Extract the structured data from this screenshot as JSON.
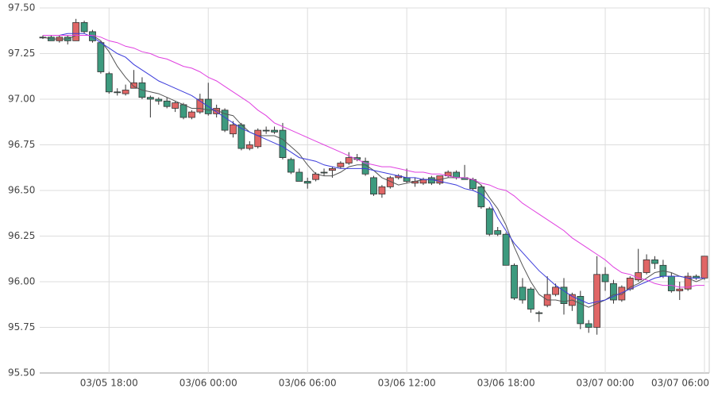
{
  "chart_data": {
    "type": "candlestick",
    "up_color": "#e06666",
    "down_color": "#3d9a7e",
    "grid": true,
    "ylim": [
      95.5,
      97.5
    ],
    "yticks": [
      {
        "value": 95.5,
        "label": "95.50"
      },
      95.75,
      {
        "value": 96,
        "label": "96.00"
      },
      96.25,
      {
        "value": 96.5,
        "label": "96.50"
      },
      96.75,
      {
        "value": 97,
        "label": "97.00"
      },
      97.25,
      {
        "value": 97.5,
        "label": "97.50"
      }
    ],
    "xlim": [
      0,
      80
    ],
    "xticks": [
      {
        "value": 8,
        "label": "03/05 18:00"
      },
      {
        "value": 20,
        "label": "03/06 00:00"
      },
      {
        "value": 32,
        "label": "03/06 06:00"
      },
      {
        "value": 44,
        "label": "03/06 12:00"
      },
      {
        "value": 56,
        "label": "03/06 18:00"
      },
      {
        "value": 68,
        "label": "03/07 00:00"
      },
      {
        "value": 80,
        "label": "03/07 06:00"
      }
    ],
    "open": [
      97.34,
      97.34,
      97.32,
      97.34,
      97.32,
      97.42,
      97.37,
      97.31,
      97.14,
      97.04,
      97.03,
      97.06,
      97.09,
      97.01,
      97.0,
      96.99,
      96.95,
      96.97,
      96.9,
      96.93,
      97.0,
      96.92,
      96.94,
      96.81,
      96.86,
      96.73,
      96.74,
      96.83,
      96.83,
      96.83,
      96.67,
      96.6,
      96.55,
      96.56,
      96.6,
      96.61,
      96.63,
      96.65,
      96.68,
      96.66,
      96.57,
      96.48,
      96.52,
      96.57,
      96.57,
      96.54,
      96.54,
      96.57,
      96.54,
      96.58,
      96.6,
      96.57,
      96.56,
      96.52,
      96.4,
      96.28,
      96.26,
      96.09,
      95.97,
      95.96,
      95.83,
      95.87,
      95.93,
      95.97,
      95.87,
      95.92,
      95.77,
      95.75,
      96.04,
      95.99,
      95.9,
      95.96,
      96.01,
      96.05,
      96.12,
      96.09,
      96.03,
      95.95,
      95.96,
      96.03,
      96.02
    ],
    "high": [
      97.35,
      97.35,
      97.35,
      97.35,
      97.44,
      97.43,
      97.38,
      97.32,
      97.15,
      97.06,
      97.08,
      97.16,
      97.12,
      97.02,
      97.01,
      97.01,
      96.99,
      96.98,
      96.94,
      97.03,
      97.09,
      96.97,
      96.95,
      96.88,
      96.87,
      96.77,
      96.84,
      96.85,
      96.85,
      96.87,
      96.68,
      96.62,
      96.57,
      96.6,
      96.62,
      96.63,
      96.66,
      96.71,
      96.7,
      96.68,
      96.58,
      96.53,
      96.58,
      96.59,
      96.62,
      96.57,
      96.57,
      96.58,
      96.58,
      96.61,
      96.61,
      96.64,
      96.57,
      96.53,
      96.41,
      96.3,
      96.27,
      96.1,
      96.02,
      95.97,
      95.84,
      96.03,
      95.99,
      96.02,
      95.94,
      95.95,
      95.79,
      96.14,
      96.08,
      96.01,
      95.98,
      96.03,
      96.18,
      96.15,
      96.14,
      96.12,
      96.05,
      96.0,
      96.05,
      96.04,
      96.14
    ],
    "low": [
      97.33,
      97.32,
      97.31,
      97.3,
      97.32,
      97.36,
      97.31,
      97.14,
      97.03,
      97.02,
      97.02,
      97.06,
      97.0,
      96.9,
      96.97,
      96.95,
      96.93,
      96.89,
      96.89,
      96.92,
      96.91,
      96.9,
      96.82,
      96.79,
      96.72,
      96.72,
      96.73,
      96.81,
      96.81,
      96.67,
      96.59,
      96.55,
      96.51,
      96.55,
      96.58,
      96.57,
      96.62,
      96.64,
      96.66,
      96.58,
      96.47,
      96.46,
      96.51,
      96.56,
      96.54,
      96.52,
      96.53,
      96.53,
      96.53,
      96.57,
      96.56,
      96.56,
      96.5,
      96.4,
      96.25,
      96.25,
      96.09,
      95.9,
      95.88,
      95.83,
      95.78,
      95.86,
      95.92,
      95.82,
      95.84,
      95.74,
      95.72,
      95.71,
      95.95,
      95.88,
      95.89,
      95.95,
      96.0,
      96.04,
      96.07,
      96.02,
      95.94,
      95.9,
      95.95,
      96.01,
      96.01
    ],
    "close": [
      97.34,
      97.32,
      97.34,
      97.32,
      97.42,
      97.37,
      97.32,
      97.15,
      97.04,
      97.04,
      97.05,
      97.09,
      97.01,
      97.0,
      96.99,
      96.96,
      96.98,
      96.9,
      96.93,
      97.0,
      96.92,
      96.95,
      96.83,
      96.86,
      96.73,
      96.75,
      96.83,
      96.83,
      96.82,
      96.68,
      96.6,
      96.55,
      96.54,
      96.59,
      96.6,
      96.62,
      96.65,
      96.68,
      96.67,
      96.59,
      96.48,
      96.52,
      96.57,
      96.58,
      96.55,
      96.55,
      96.56,
      96.54,
      96.58,
      96.6,
      96.57,
      96.56,
      96.51,
      96.41,
      96.26,
      96.26,
      96.09,
      95.91,
      95.9,
      95.85,
      95.83,
      95.93,
      95.97,
      95.88,
      95.93,
      95.77,
      95.75,
      96.04,
      96.0,
      95.9,
      95.97,
      96.02,
      96.05,
      96.12,
      96.1,
      96.03,
      95.95,
      95.96,
      96.03,
      96.02,
      96.14
    ],
    "series": [
      {
        "color": "#555555",
        "values": [
          97.34,
          97.33,
          97.33,
          97.33,
          97.35,
          97.35,
          97.35,
          97.32,
          97.26,
          97.18,
          97.12,
          97.07,
          97.05,
          97.04,
          97.03,
          97.01,
          96.99,
          96.97,
          96.95,
          96.95,
          96.94,
          96.94,
          96.92,
          96.91,
          96.86,
          96.82,
          96.8,
          96.8,
          96.8,
          96.78,
          96.74,
          96.7,
          96.64,
          96.59,
          96.58,
          96.58,
          96.6,
          96.63,
          96.64,
          96.64,
          96.61,
          96.57,
          96.55,
          96.53,
          96.54,
          96.55,
          96.56,
          96.56,
          96.56,
          96.57,
          96.57,
          96.57,
          96.56,
          96.53,
          96.46,
          96.4,
          96.31,
          96.19,
          96.09,
          96.0,
          95.93,
          95.9,
          95.9,
          95.89,
          95.9,
          95.88,
          95.86,
          95.88,
          95.9,
          95.93,
          95.93,
          95.97,
          95.99,
          96.02,
          96.05,
          96.06,
          96.05,
          96.03,
          96.02,
          96.0,
          96.02
        ]
      },
      {
        "color": "#3b3bdb",
        "values": [
          97.35,
          97.35,
          97.35,
          97.36,
          97.36,
          97.36,
          97.34,
          97.31,
          97.28,
          97.25,
          97.23,
          97.19,
          97.16,
          97.13,
          97.1,
          97.08,
          97.06,
          97.04,
          97.02,
          96.99,
          96.96,
          96.93,
          96.9,
          96.87,
          96.84,
          96.82,
          96.8,
          96.78,
          96.76,
          96.74,
          96.71,
          96.68,
          96.67,
          96.66,
          96.64,
          96.63,
          96.62,
          96.62,
          96.62,
          96.62,
          96.61,
          96.6,
          96.59,
          96.58,
          96.57,
          96.57,
          96.56,
          96.56,
          96.55,
          96.54,
          96.53,
          96.51,
          96.5,
          96.48,
          96.44,
          96.35,
          96.28,
          96.21,
          96.16,
          96.11,
          96.06,
          96.02,
          95.98,
          95.95,
          95.92,
          95.9,
          95.88,
          95.89,
          95.9,
          95.92,
          95.94,
          95.96,
          95.98,
          96.0,
          96.02,
          96.03,
          96.03,
          96.03,
          96.02,
          96.02,
          96.02
        ]
      },
      {
        "color": "#e040e0",
        "values": [
          97.35,
          97.35,
          97.35,
          97.35,
          97.35,
          97.35,
          97.35,
          97.34,
          97.32,
          97.31,
          97.29,
          97.28,
          97.26,
          97.25,
          97.23,
          97.22,
          97.2,
          97.18,
          97.17,
          97.15,
          97.12,
          97.1,
          97.07,
          97.04,
          97.01,
          96.98,
          96.94,
          96.91,
          96.87,
          96.85,
          96.83,
          96.81,
          96.79,
          96.77,
          96.75,
          96.73,
          96.71,
          96.69,
          96.67,
          96.65,
          96.64,
          96.63,
          96.63,
          96.62,
          96.61,
          96.6,
          96.6,
          96.59,
          96.59,
          96.58,
          96.57,
          96.57,
          96.56,
          96.54,
          96.53,
          96.51,
          96.5,
          96.47,
          96.43,
          96.4,
          96.37,
          96.34,
          96.31,
          96.28,
          96.24,
          96.21,
          96.18,
          96.15,
          96.12,
          96.08,
          96.05,
          96.04,
          96.02,
          96.01,
          95.99,
          95.98,
          95.98,
          95.97,
          95.97,
          95.98,
          95.98
        ]
      }
    ]
  }
}
